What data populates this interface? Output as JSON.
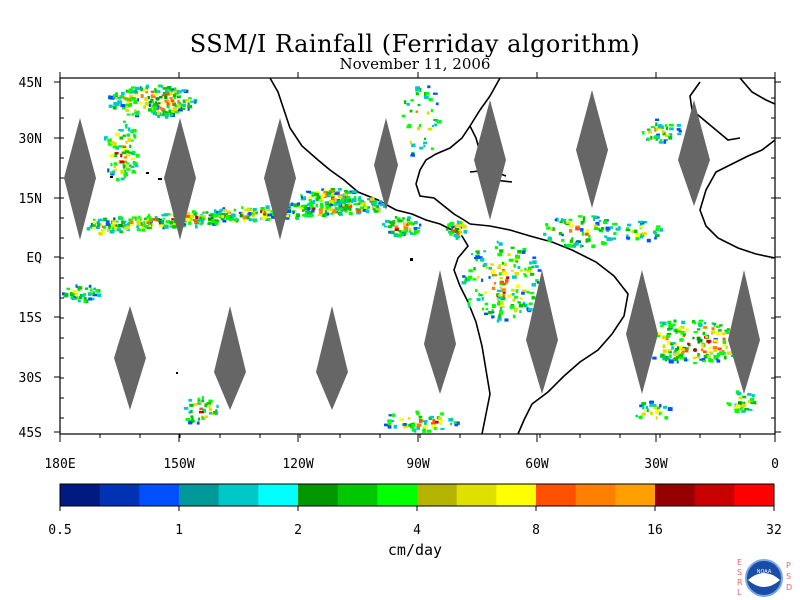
{
  "title": "SSM/I Rainfall (Ferriday algorithm)",
  "date": "November 11, 2006",
  "map": {
    "lat_labels": [
      "45N",
      "30N",
      "15N",
      "EQ",
      "15S",
      "30S",
      "45S"
    ],
    "lon_labels": [
      "180E",
      "150W",
      "120W",
      "90W",
      "60W",
      "30W",
      "0"
    ]
  },
  "colorbar": {
    "colors": [
      "#001a80",
      "#0033b3",
      "#0050ff",
      "#00999a",
      "#00c8c8",
      "#00ffff",
      "#009600",
      "#00c800",
      "#00ff00",
      "#b3b300",
      "#e0e000",
      "#ffff00",
      "#ff5000",
      "#ff8000",
      "#ffa000",
      "#960000",
      "#c80000",
      "#ff0000"
    ],
    "tick_labels": [
      "0.5",
      "1",
      "2",
      "4",
      "8",
      "16",
      "32"
    ],
    "units": "cm/day"
  },
  "logo": {
    "left_letters": [
      "E",
      "S",
      "R",
      "L"
    ],
    "right_letters": [
      "P",
      "S",
      "D"
    ],
    "badge_text": "NOAA"
  }
}
